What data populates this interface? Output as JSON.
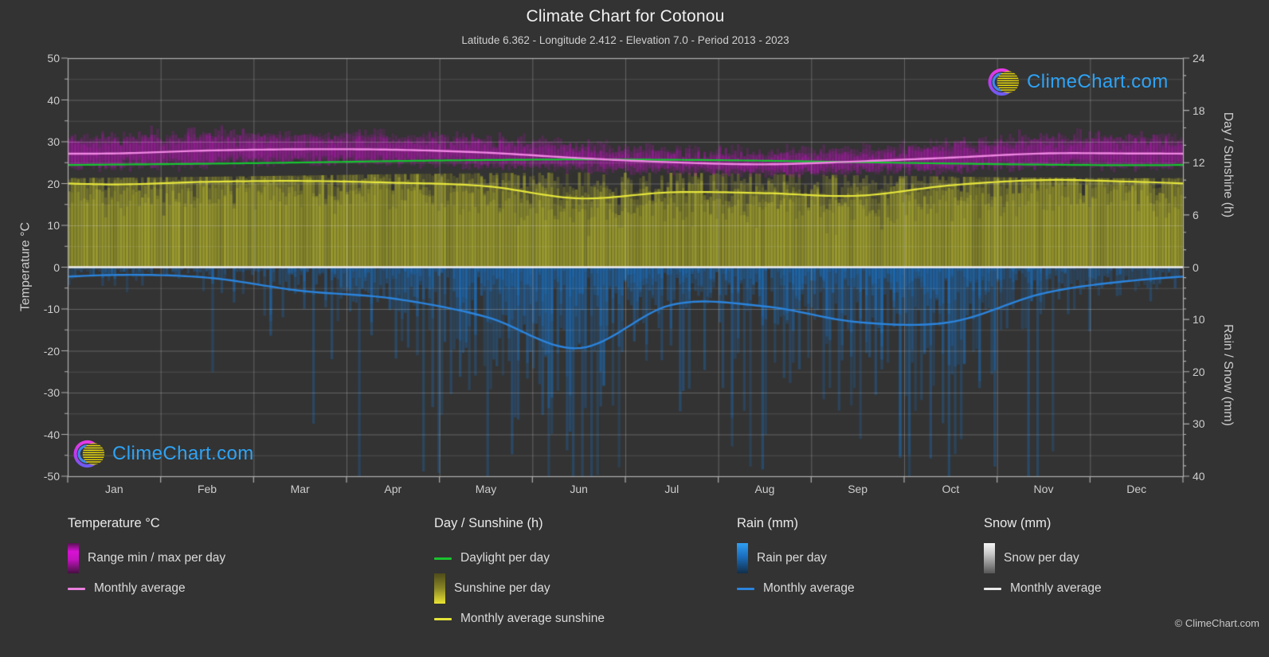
{
  "header": {
    "title": "Climate Chart for Cotonou",
    "subtitle": "Latitude 6.362 - Longitude 2.412 - Elevation 7.0 - Period 2013 - 2023"
  },
  "branding": {
    "logo_text": "ClimeChart.com",
    "copyright": "© ClimeChart.com"
  },
  "axes": {
    "left": {
      "title": "Temperature °C",
      "ticks": [
        50,
        40,
        30,
        20,
        10,
        0,
        -10,
        -20,
        -30,
        -40,
        -50
      ]
    },
    "right_top": {
      "title": "Day / Sunshine (h)",
      "ticks": [
        24,
        18,
        12,
        6,
        0
      ]
    },
    "right_bottom": {
      "title": "Rain / Snow (mm)",
      "ticks": [
        10,
        20,
        30,
        40
      ]
    },
    "x": {
      "months": [
        "Jan",
        "Feb",
        "Mar",
        "Apr",
        "May",
        "Jun",
        "Jul",
        "Aug",
        "Sep",
        "Oct",
        "Nov",
        "Dec"
      ]
    }
  },
  "legend": {
    "columns": [
      {
        "header": "Temperature °C",
        "items": [
          {
            "swatch": "grad-magenta",
            "label": "Range min / max per day"
          },
          {
            "swatch": "line-magenta",
            "label": "Monthly average"
          }
        ]
      },
      {
        "header": "Day / Sunshine (h)",
        "items": [
          {
            "swatch": "line-green",
            "label": "Daylight per day"
          },
          {
            "swatch": "grad-yellow",
            "label": "Sunshine per day"
          },
          {
            "swatch": "line-yellow",
            "label": "Monthly average sunshine"
          }
        ]
      },
      {
        "header": "Rain (mm)",
        "items": [
          {
            "swatch": "grad-blue",
            "label": "Rain per day"
          },
          {
            "swatch": "line-blue",
            "label": "Monthly average"
          }
        ]
      },
      {
        "header": "Snow (mm)",
        "items": [
          {
            "swatch": "grad-white",
            "label": "Snow per day"
          },
          {
            "swatch": "line-white",
            "label": "Monthly average"
          }
        ]
      }
    ]
  },
  "chart_data": {
    "type": "area",
    "title": "Climate Chart for Cotonou",
    "categories": [
      "Jan",
      "Feb",
      "Mar",
      "Apr",
      "May",
      "Jun",
      "Jul",
      "Aug",
      "Sep",
      "Oct",
      "Nov",
      "Dec"
    ],
    "axis_ranges": {
      "temperature_c": [
        -50,
        50
      ],
      "day_sunshine_h": [
        0,
        24
      ],
      "rain_snow_mm": [
        0,
        40
      ],
      "rain_axis_inverted_below_zero": true
    },
    "grid": {
      "horizontal_step_c": 5,
      "vertical": "month-boundaries"
    },
    "series": [
      {
        "name": "temp_daily_max_c",
        "legend": "Range min / max per day (max)",
        "values": [
          30.3,
          31.0,
          31.0,
          30.8,
          30.0,
          28.4,
          27.2,
          26.8,
          27.4,
          28.6,
          30.0,
          30.2
        ]
      },
      {
        "name": "temp_daily_min_c",
        "legend": "Range min / max per day (min)",
        "values": [
          24.3,
          25.2,
          25.6,
          25.5,
          25.0,
          24.1,
          23.4,
          23.0,
          23.3,
          23.9,
          24.6,
          24.4
        ]
      },
      {
        "name": "temp_monthly_avg_c",
        "legend": "Monthly average temperature",
        "values": [
          27.2,
          27.9,
          28.2,
          28.1,
          27.4,
          26.1,
          25.1,
          24.6,
          25.3,
          26.2,
          27.2,
          27.2
        ]
      },
      {
        "name": "daylight_h",
        "legend": "Daylight per day",
        "values": [
          11.78,
          11.88,
          12.02,
          12.18,
          12.3,
          12.37,
          12.33,
          12.22,
          12.06,
          11.9,
          11.77,
          11.71
        ]
      },
      {
        "name": "sunshine_monthly_avg_h",
        "legend": "Monthly average sunshine",
        "values": [
          9.5,
          9.8,
          9.9,
          9.7,
          9.3,
          7.9,
          8.6,
          8.5,
          8.2,
          9.4,
          10.0,
          9.8
        ]
      },
      {
        "name": "rain_monthly_avg_mm",
        "legend": "Monthly average rain",
        "values": [
          1.5,
          2.0,
          4.5,
          6.0,
          9.5,
          15.5,
          7.2,
          7.5,
          10.5,
          10.5,
          5.0,
          2.5
        ]
      },
      {
        "name": "snow_monthly_avg_mm",
        "legend": "Monthly average snow",
        "values": [
          0,
          0,
          0,
          0,
          0,
          0,
          0,
          0,
          0,
          0,
          0,
          0
        ]
      }
    ]
  },
  "colors": {
    "background": "#333333",
    "grid": "#d7d7d7",
    "zero_line": "#f0f0f0",
    "temp_band": "#d010d0",
    "temp_avg_line": "#ef86e2",
    "daylight_line": "#15c42f",
    "sunshine_fill": "#cdcd2d",
    "sunshine_avg_line": "#e6e63c",
    "rain_fill": "#1973c8",
    "rain_avg_line": "#2b84dd",
    "snow_avg_line": "#e8e8e8",
    "logo_text": "#2ea3f5"
  }
}
